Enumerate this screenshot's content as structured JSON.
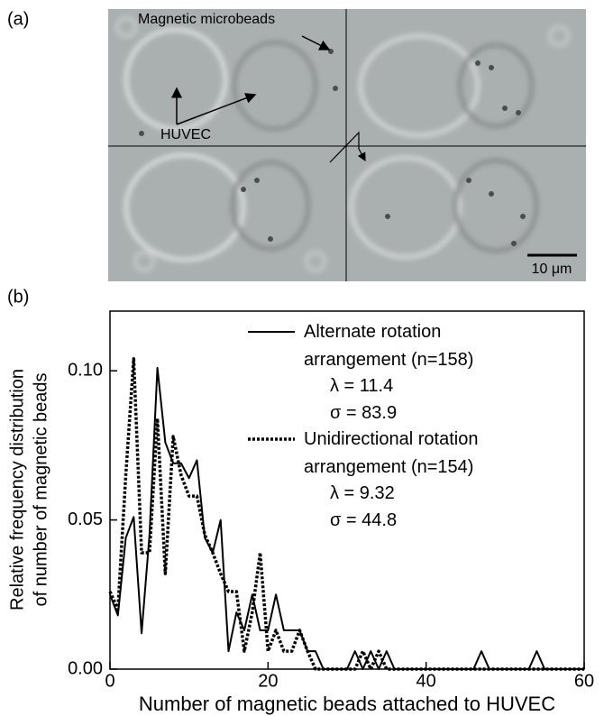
{
  "figure_a": {
    "panel_label": "(a)",
    "beads_label": "Magnetic microbeads",
    "cell_label": "HUVEC",
    "scale_label": "10 μm"
  },
  "chart_data": {
    "type": "line",
    "panel_label": "(b)",
    "x_label": "Number of magnetic beads attached to HUVEC",
    "y_label": [
      "Relative frequency distribution",
      "of number of magnetic beads"
    ],
    "x": [
      0,
      1,
      2,
      3,
      4,
      5,
      6,
      7,
      8,
      9,
      10,
      11,
      12,
      13,
      14,
      15,
      16,
      17,
      18,
      19,
      20,
      21,
      22,
      23,
      24,
      25,
      26,
      27,
      28,
      29,
      30,
      31,
      32,
      33,
      34,
      35,
      36,
      37,
      38,
      39,
      40,
      41,
      42,
      43,
      44,
      45,
      46,
      47,
      48,
      49,
      50,
      51,
      52,
      53,
      54,
      55,
      56,
      57,
      58,
      59,
      60
    ],
    "series": [
      {
        "name": "Alternate rotation arrangement (n=158)",
        "color": "#000000",
        "line_style": "solid",
        "stats": [
          "λ = 11.4",
          "σ = 83.9"
        ],
        "values": [
          0.025,
          0.018,
          0.044,
          0.051,
          0.012,
          0.045,
          0.101,
          0.076,
          0.069,
          0.069,
          0.064,
          0.07,
          0.044,
          0.039,
          0.05,
          0.006,
          0.019,
          0.013,
          0.025,
          0.013,
          0.013,
          0.025,
          0.013,
          0.013,
          0.013,
          0.006,
          0.006,
          0,
          0,
          0,
          0,
          0.006,
          0,
          0.006,
          0,
          0.006,
          0,
          0,
          0,
          0,
          0,
          0,
          0,
          0,
          0,
          0,
          0,
          0.006,
          0,
          0,
          0,
          0,
          0,
          0,
          0.006,
          0,
          0,
          0,
          0,
          0,
          0
        ]
      },
      {
        "name": "Unidirectional rotation arrangement (n=154)",
        "color": "#000000",
        "line_style": "dotted",
        "stats": [
          "λ = 9.32",
          "σ = 44.8"
        ],
        "values": [
          0.026,
          0.02,
          0.065,
          0.104,
          0.039,
          0.039,
          0.084,
          0.032,
          0.078,
          0.065,
          0.058,
          0.058,
          0.045,
          0.039,
          0.032,
          0.026,
          0.026,
          0.006,
          0.019,
          0.039,
          0.006,
          0.013,
          0.006,
          0.006,
          0.013,
          0.006,
          0,
          0,
          0,
          0,
          0,
          0,
          0.006,
          0,
          0.006,
          0,
          0,
          0,
          0,
          0,
          0,
          0,
          0,
          0,
          0,
          0,
          0,
          0,
          0,
          0,
          0,
          0,
          0,
          0,
          0,
          0,
          0,
          0,
          0,
          0,
          0
        ]
      }
    ],
    "xlim": [
      0,
      60
    ],
    "xticks": [
      0,
      20,
      40,
      60
    ],
    "ylim": [
      0,
      0.12
    ],
    "yticks": [
      {
        "value": 0,
        "label": "0.00"
      },
      {
        "value": 0.05,
        "label": "0.05"
      },
      {
        "value": 0.1,
        "label": "0.10"
      }
    ]
  }
}
